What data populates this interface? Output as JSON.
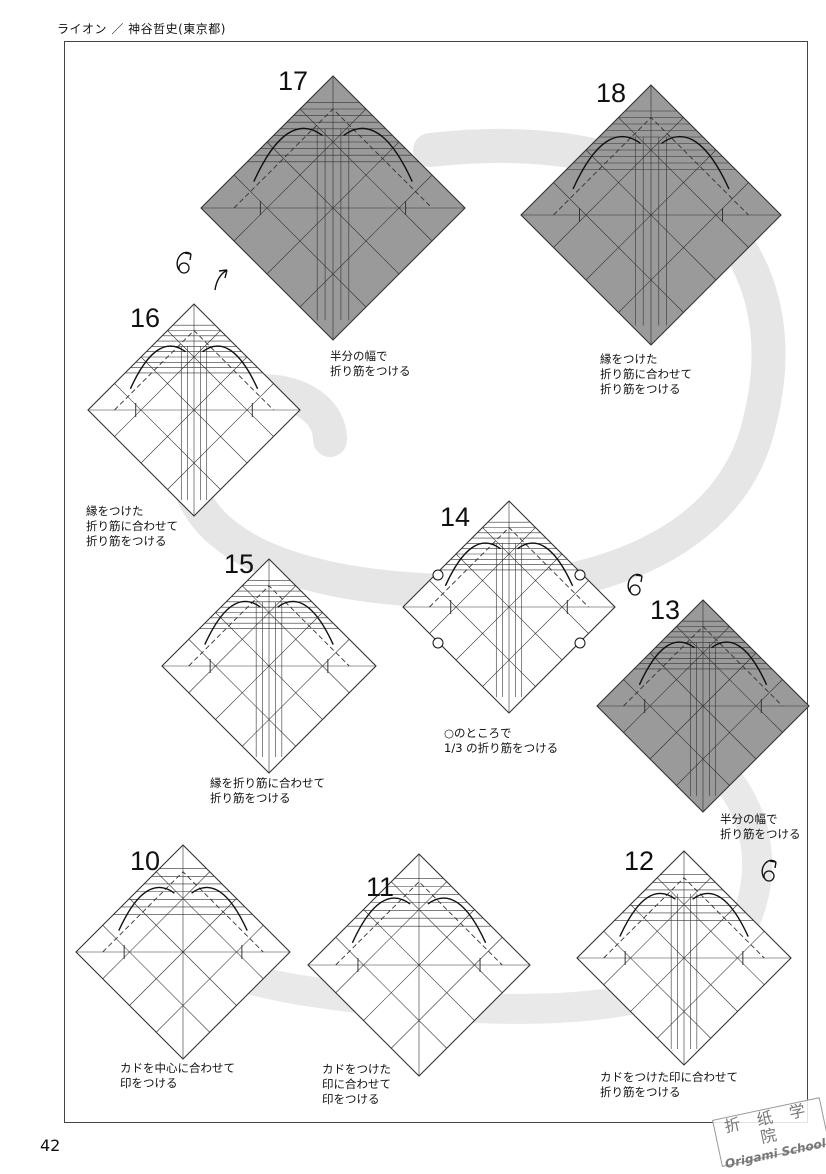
{
  "header": {
    "title": "ライオン ／ 神谷哲史(東京都)"
  },
  "page_number": "42",
  "watermark": {
    "chinese": "折 纸 学 院",
    "english": "Origami School"
  },
  "steps": [
    {
      "number": "10",
      "caption": "カドを中心に合わせて\n印をつける",
      "paper": "white"
    },
    {
      "number": "11",
      "caption": "カドをつけた\n印に合わせて\n印をつける",
      "paper": "white"
    },
    {
      "number": "12",
      "caption": "カドをつけた印に合わせて\n折り筋をつける",
      "paper": "white"
    },
    {
      "number": "13",
      "caption": "半分の幅で\n折り筋をつける",
      "paper": "gray"
    },
    {
      "number": "14",
      "caption": "○のところで\n1/3 の折り筋をつける",
      "paper": "white"
    },
    {
      "number": "15",
      "caption": "縁を折り筋に合わせて\n折り筋をつける",
      "paper": "white"
    },
    {
      "number": "16",
      "caption": "縁をつけた\n折り筋に合わせて\n折り筋をつける",
      "paper": "white"
    },
    {
      "number": "17",
      "caption": "半分の幅で\n折り筋をつける",
      "paper": "gray"
    },
    {
      "number": "18",
      "caption": "縁をつけた\n折り筋に合わせて\n折り筋をつける",
      "paper": "gray"
    }
  ],
  "colors": {
    "gray_paper": "#9a9a9a",
    "white_paper": "#ffffff",
    "crease": "#333333",
    "backdrop_swirl": "#dedede"
  },
  "icons": [
    "turn-over-icon",
    "fold-arrow-icon",
    "pinch-mark-icon"
  ]
}
